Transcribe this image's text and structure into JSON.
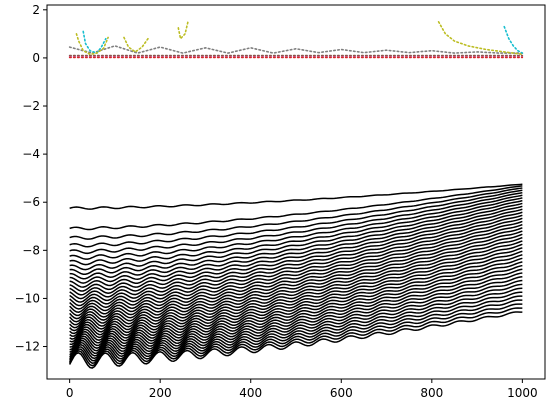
{
  "chart_data": {
    "type": "line",
    "title": "",
    "xlabel": "",
    "ylabel": "",
    "xlim": [
      -50,
      1050
    ],
    "ylim": [
      -13.35,
      2.2
    ],
    "grid": false,
    "legend": "none",
    "x_ticks": [
      0,
      200,
      400,
      600,
      800,
      1000
    ],
    "x_tick_labels": [
      "0",
      "200",
      "400",
      "600",
      "800",
      "1000"
    ],
    "y_ticks": [
      -12,
      -10,
      -8,
      -6,
      -4,
      -2,
      0,
      2
    ],
    "y_tick_labels": [
      "−12",
      "−10",
      "−8",
      "−6",
      "−4",
      "−2",
      "0",
      "2"
    ],
    "black_curve_family": {
      "color": "#000000",
      "count": 40,
      "x_range": [
        0,
        1000
      ],
      "top_curve": {
        "start": -6.25,
        "end": -5.25
      },
      "bottom_curve": {
        "start": -12.6,
        "end": -10.55
      },
      "oscillation_period": 60
    },
    "series": [
      {
        "color": "#7f7f7f",
        "style": "dotted",
        "x": [
          0,
          50,
          100,
          150,
          200,
          250,
          300,
          350,
          400,
          450,
          500,
          550,
          600,
          650,
          700,
          750,
          800,
          850,
          900,
          950,
          1000
        ],
        "y": [
          0.45,
          0.2,
          0.5,
          0.2,
          0.45,
          0.2,
          0.42,
          0.2,
          0.42,
          0.2,
          0.38,
          0.22,
          0.35,
          0.22,
          0.32,
          0.22,
          0.3,
          0.2,
          0.25,
          0.2,
          0.2
        ]
      },
      {
        "color": "#17becf",
        "style": "dotted",
        "x": [
          30,
          35,
          45,
          60,
          70,
          80
        ],
        "y": [
          1.1,
          0.6,
          0.3,
          0.2,
          0.45,
          0.8
        ]
      },
      {
        "color": "#17becf",
        "style": "dotted",
        "x": [
          960,
          970,
          980,
          990,
          1000
        ],
        "y": [
          1.3,
          0.8,
          0.5,
          0.3,
          0.2
        ]
      },
      {
        "color": "#bcbd22",
        "style": "dotted",
        "x": [
          15,
          20,
          30,
          45,
          60,
          75,
          85
        ],
        "y": [
          1.0,
          0.7,
          0.3,
          0.15,
          0.2,
          0.4,
          0.85
        ]
      },
      {
        "color": "#bcbd22",
        "style": "dotted",
        "x": [
          120,
          130,
          145,
          160,
          175
        ],
        "y": [
          0.85,
          0.45,
          0.25,
          0.45,
          0.85
        ]
      },
      {
        "color": "#bcbd22",
        "style": "dotted",
        "x": [
          240,
          245,
          255,
          262
        ],
        "y": [
          1.25,
          0.8,
          1.0,
          1.55
        ]
      },
      {
        "color": "#bcbd22",
        "style": "dotted",
        "x": [
          815,
          830,
          850,
          880,
          920,
          960,
          1000
        ],
        "y": [
          1.5,
          1.0,
          0.7,
          0.5,
          0.35,
          0.25,
          0.15
        ]
      },
      {
        "color": "#9467bd",
        "style": "dotted",
        "x": [
          0,
          1000
        ],
        "y": [
          0.08,
          0.08
        ]
      },
      {
        "color": "#e377c2",
        "style": "dotted",
        "x": [
          0,
          1000
        ],
        "y": [
          0.05,
          0.05
        ]
      },
      {
        "color": "#d62728",
        "style": "dotted",
        "x": [
          0,
          1000
        ],
        "y": [
          0.02,
          0.02
        ]
      },
      {
        "color": "#8c564b",
        "style": "dotted",
        "x": [
          0,
          1000
        ],
        "y": [
          0.1,
          0.1
        ]
      }
    ]
  }
}
